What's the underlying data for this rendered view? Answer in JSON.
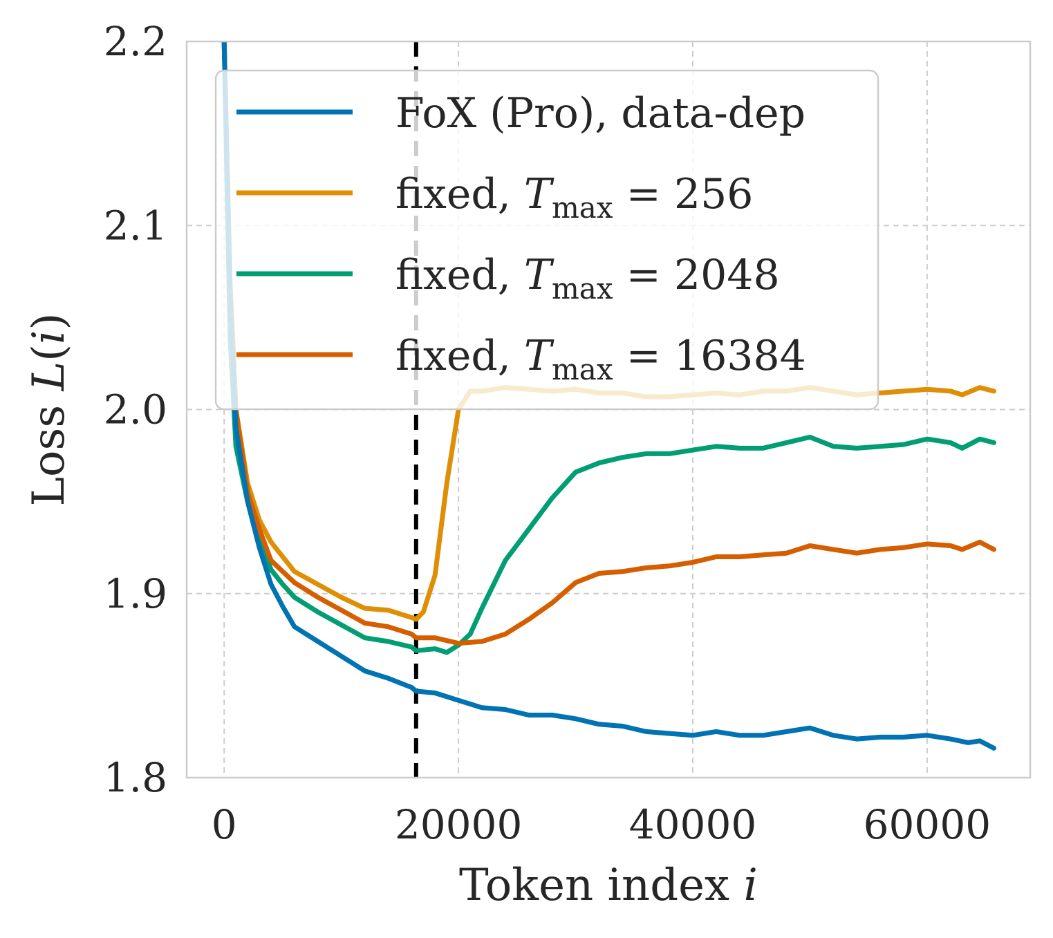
{
  "chart_data": {
    "type": "line",
    "xlabel": "Token index i",
    "xlabel_parts": [
      "Token index ",
      "i"
    ],
    "ylabel": "Loss L(i)",
    "ylabel_parts": [
      "Loss ",
      "L",
      "(",
      "i",
      ")"
    ],
    "xlim": [
      -3200,
      68800
    ],
    "ylim": [
      1.8,
      2.2
    ],
    "xticks": [
      0,
      20000,
      40000,
      60000
    ],
    "xtick_labels": [
      "0",
      "20000",
      "40000",
      "60000"
    ],
    "yticks": [
      1.8,
      1.9,
      2.0,
      2.1,
      2.2
    ],
    "ytick_labels": [
      "1.8",
      "1.9",
      "2.0",
      "2.1",
      "2.2"
    ],
    "grid": true,
    "vline": {
      "x": 16384,
      "style": "dashed",
      "color": "#000000"
    },
    "legend_position": "top-left",
    "series": [
      {
        "name": "FoX (Pro), data-dep",
        "legend_parts": [
          "FoX (Pro), data-dep"
        ],
        "color": "#0173b2",
        "points": [
          [
            0,
            2.2
          ],
          [
            500,
            2.06
          ],
          [
            1000,
            1.99
          ],
          [
            2000,
            1.95
          ],
          [
            3000,
            1.925
          ],
          [
            4000,
            1.905
          ],
          [
            5000,
            1.893
          ],
          [
            6000,
            1.882
          ],
          [
            8000,
            1.874
          ],
          [
            10000,
            1.866
          ],
          [
            12000,
            1.858
          ],
          [
            14000,
            1.854
          ],
          [
            16000,
            1.849
          ],
          [
            16384,
            1.847
          ],
          [
            18000,
            1.846
          ],
          [
            20000,
            1.842
          ],
          [
            22000,
            1.838
          ],
          [
            24000,
            1.837
          ],
          [
            26000,
            1.834
          ],
          [
            28000,
            1.834
          ],
          [
            30000,
            1.832
          ],
          [
            32000,
            1.829
          ],
          [
            34000,
            1.828
          ],
          [
            36000,
            1.825
          ],
          [
            38000,
            1.824
          ],
          [
            40000,
            1.823
          ],
          [
            42000,
            1.825
          ],
          [
            44000,
            1.823
          ],
          [
            46000,
            1.823
          ],
          [
            48000,
            1.825
          ],
          [
            50000,
            1.827
          ],
          [
            52000,
            1.823
          ],
          [
            54000,
            1.821
          ],
          [
            56000,
            1.822
          ],
          [
            58000,
            1.822
          ],
          [
            60000,
            1.823
          ],
          [
            62000,
            1.821
          ],
          [
            63500,
            1.819
          ],
          [
            64500,
            1.82
          ],
          [
            65700,
            1.816
          ]
        ]
      },
      {
        "name": "fixed, T_max = 256",
        "legend_parts": [
          "fixed, ",
          "T",
          "max",
          " = 256"
        ],
        "color": "#de8f05",
        "points": [
          [
            0,
            2.2
          ],
          [
            500,
            2.07
          ],
          [
            1000,
            2.0
          ],
          [
            2000,
            1.96
          ],
          [
            3000,
            1.94
          ],
          [
            4000,
            1.928
          ],
          [
            5000,
            1.92
          ],
          [
            6000,
            1.912
          ],
          [
            8000,
            1.905
          ],
          [
            10000,
            1.898
          ],
          [
            12000,
            1.892
          ],
          [
            14000,
            1.891
          ],
          [
            16000,
            1.887
          ],
          [
            16384,
            1.886
          ],
          [
            17000,
            1.89
          ],
          [
            18000,
            1.91
          ],
          [
            19000,
            1.96
          ],
          [
            20000,
            2.0
          ],
          [
            21000,
            2.01
          ],
          [
            22000,
            2.01
          ],
          [
            24000,
            2.012
          ],
          [
            26000,
            2.011
          ],
          [
            28000,
            2.01
          ],
          [
            30000,
            2.011
          ],
          [
            32000,
            2.009
          ],
          [
            34000,
            2.009
          ],
          [
            36000,
            2.007
          ],
          [
            38000,
            2.007
          ],
          [
            40000,
            2.008
          ],
          [
            42000,
            2.009
          ],
          [
            44000,
            2.008
          ],
          [
            46000,
            2.01
          ],
          [
            48000,
            2.01
          ],
          [
            50000,
            2.012
          ],
          [
            52000,
            2.01
          ],
          [
            54000,
            2.008
          ],
          [
            56000,
            2.009
          ],
          [
            58000,
            2.01
          ],
          [
            60000,
            2.011
          ],
          [
            62000,
            2.01
          ],
          [
            63000,
            2.008
          ],
          [
            64500,
            2.012
          ],
          [
            65700,
            2.01
          ]
        ]
      },
      {
        "name": "fixed, T_max = 2048",
        "legend_parts": [
          "fixed, ",
          "T",
          "max",
          " = 2048"
        ],
        "color": "#029e73",
        "points": [
          [
            0,
            2.2
          ],
          [
            500,
            2.04
          ],
          [
            1000,
            1.98
          ],
          [
            2000,
            1.95
          ],
          [
            3000,
            1.93
          ],
          [
            4000,
            1.913
          ],
          [
            5000,
            1.905
          ],
          [
            6000,
            1.898
          ],
          [
            8000,
            1.89
          ],
          [
            10000,
            1.883
          ],
          [
            12000,
            1.876
          ],
          [
            14000,
            1.874
          ],
          [
            16000,
            1.871
          ],
          [
            16384,
            1.869
          ],
          [
            18000,
            1.87
          ],
          [
            19000,
            1.868
          ],
          [
            20000,
            1.872
          ],
          [
            21000,
            1.878
          ],
          [
            22000,
            1.892
          ],
          [
            24000,
            1.918
          ],
          [
            26000,
            1.935
          ],
          [
            28000,
            1.952
          ],
          [
            30000,
            1.966
          ],
          [
            32000,
            1.971
          ],
          [
            34000,
            1.974
          ],
          [
            36000,
            1.976
          ],
          [
            38000,
            1.976
          ],
          [
            40000,
            1.978
          ],
          [
            42000,
            1.98
          ],
          [
            44000,
            1.979
          ],
          [
            46000,
            1.979
          ],
          [
            48000,
            1.982
          ],
          [
            50000,
            1.985
          ],
          [
            52000,
            1.98
          ],
          [
            54000,
            1.979
          ],
          [
            56000,
            1.98
          ],
          [
            58000,
            1.981
          ],
          [
            60000,
            1.984
          ],
          [
            62000,
            1.982
          ],
          [
            63000,
            1.979
          ],
          [
            64500,
            1.984
          ],
          [
            65700,
            1.982
          ]
        ]
      },
      {
        "name": "fixed, T_max = 16384",
        "legend_parts": [
          "fixed, ",
          "T",
          "max",
          " = 16384"
        ],
        "color": "#d55e00",
        "points": [
          [
            0,
            2.2
          ],
          [
            500,
            2.07
          ],
          [
            1000,
            2.0
          ],
          [
            2000,
            1.955
          ],
          [
            3000,
            1.935
          ],
          [
            4000,
            1.918
          ],
          [
            5000,
            1.912
          ],
          [
            6000,
            1.906
          ],
          [
            8000,
            1.898
          ],
          [
            10000,
            1.891
          ],
          [
            12000,
            1.884
          ],
          [
            14000,
            1.882
          ],
          [
            16000,
            1.878
          ],
          [
            16384,
            1.876
          ],
          [
            18000,
            1.876
          ],
          [
            20000,
            1.873
          ],
          [
            22000,
            1.874
          ],
          [
            24000,
            1.878
          ],
          [
            26000,
            1.886
          ],
          [
            28000,
            1.895
          ],
          [
            30000,
            1.906
          ],
          [
            32000,
            1.911
          ],
          [
            34000,
            1.912
          ],
          [
            36000,
            1.914
          ],
          [
            38000,
            1.915
          ],
          [
            40000,
            1.917
          ],
          [
            42000,
            1.92
          ],
          [
            44000,
            1.92
          ],
          [
            46000,
            1.921
          ],
          [
            48000,
            1.922
          ],
          [
            50000,
            1.926
          ],
          [
            52000,
            1.924
          ],
          [
            54000,
            1.922
          ],
          [
            56000,
            1.924
          ],
          [
            58000,
            1.925
          ],
          [
            60000,
            1.927
          ],
          [
            62000,
            1.926
          ],
          [
            63000,
            1.924
          ],
          [
            64500,
            1.928
          ],
          [
            65700,
            1.924
          ]
        ]
      }
    ]
  }
}
